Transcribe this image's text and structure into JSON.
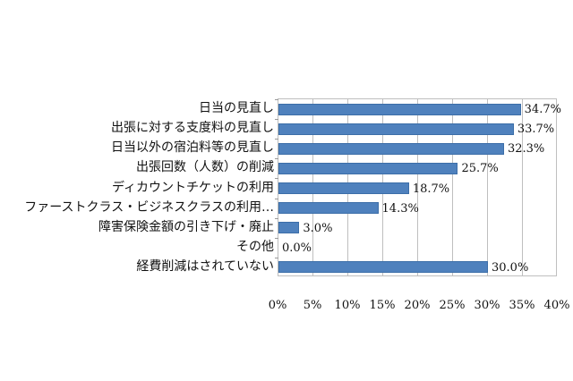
{
  "chart_data": {
    "type": "bar",
    "orientation": "horizontal",
    "title": "",
    "xlabel": "",
    "ylabel": "",
    "categories": [
      "日当の見直し",
      "出張に対する支度料の見直し",
      "日当以外の宿泊料等の見直し",
      "出張回数（人数）の削減",
      "ディカウントチケットの利用",
      "ファーストクラス・ビジネスクラスの利用…",
      "障害保険金額の引き下げ・廃止",
      "その他",
      "経費削減はされていない"
    ],
    "values": [
      34.7,
      33.7,
      32.3,
      25.7,
      18.7,
      14.3,
      3.0,
      0.0,
      30.0
    ],
    "value_labels": [
      "34.7%",
      "33.7%",
      "32.3%",
      "25.7%",
      "18.7%",
      "14.3%",
      "3.0%",
      "0.0%",
      "30.0%"
    ],
    "xlim": [
      0,
      40
    ],
    "x_ticks": [
      "0%",
      "5%",
      "10%",
      "15%",
      "20%",
      "25%",
      "30%",
      "35%",
      "40%"
    ],
    "grid": true,
    "legend": "none",
    "bar_color": "#4f81bd"
  }
}
